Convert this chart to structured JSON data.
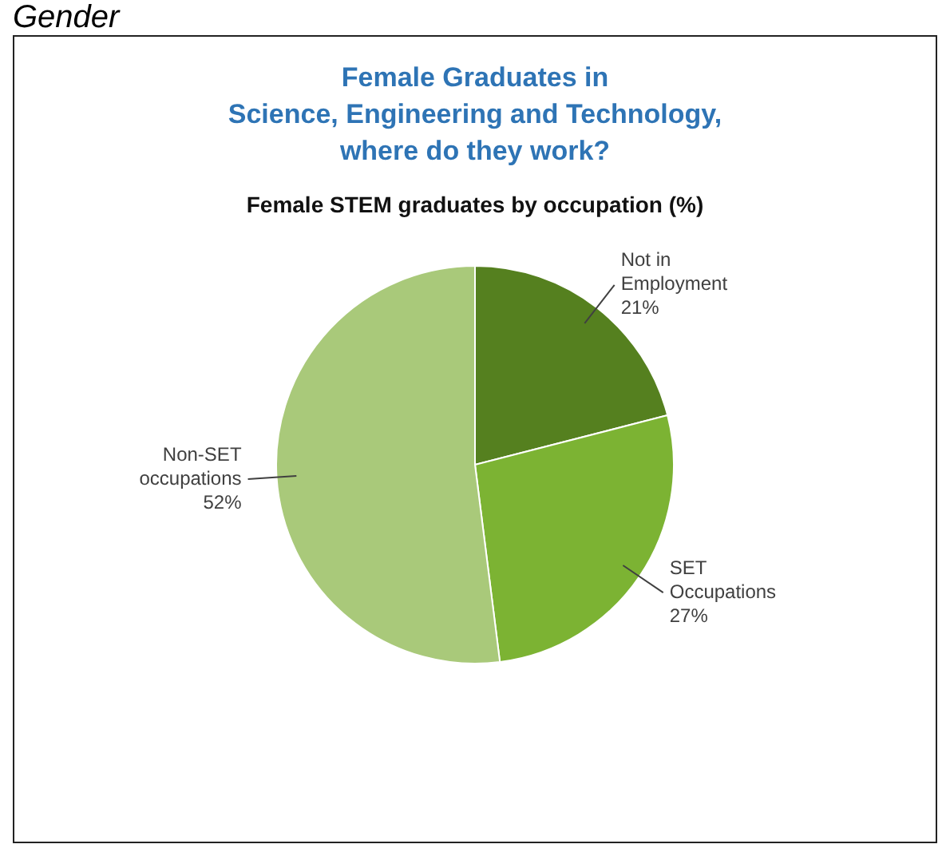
{
  "chart_data": {
    "type": "pie",
    "title": "Female Graduates in\nScience, Engineering and Technology,\nwhere do they work?",
    "subtitle": "Female STEM graduates by occupation (%)",
    "categories": [
      "Not in Employment",
      "SET Occupations",
      "Non-SET occupations"
    ],
    "values": [
      21,
      27,
      52
    ],
    "value_labels": [
      "21%",
      "27%",
      "52%"
    ],
    "colors": [
      "#55801f",
      "#7cb333",
      "#a9c97a"
    ],
    "legend": false,
    "annotations": [
      "Gender"
    ]
  }
}
